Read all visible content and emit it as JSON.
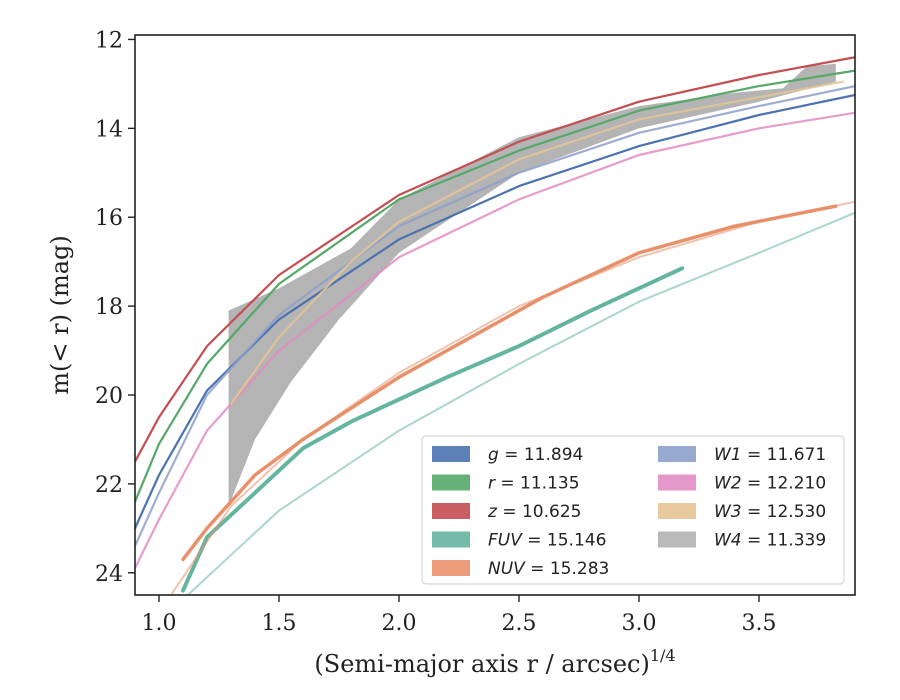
{
  "chart_data": {
    "type": "line",
    "xlabel": "(Semi-major axis r / arcsec)",
    "xlabel_exponent": "1/4",
    "ylabel": "m(< r) (mag)",
    "xlim": [
      0.9,
      3.9
    ],
    "ylim": [
      24.5,
      11.9
    ],
    "y_inverted": true,
    "x_ticks": [
      "1.0",
      "1.5",
      "2.0",
      "2.5",
      "3.0",
      "3.5"
    ],
    "y_ticks": [
      "12",
      "14",
      "16",
      "18",
      "20",
      "22",
      "24"
    ],
    "grid": false,
    "legend_position": "lower-right",
    "series": [
      {
        "name": "g",
        "value": "11.894",
        "color": "#4c72b0",
        "points": [
          [
            0.9,
            23.0
          ],
          [
            1.0,
            21.8
          ],
          [
            1.2,
            19.9
          ],
          [
            1.5,
            18.3
          ],
          [
            2.0,
            16.5
          ],
          [
            2.5,
            15.3
          ],
          [
            3.0,
            14.4
          ],
          [
            3.5,
            13.7
          ],
          [
            3.9,
            13.25
          ]
        ]
      },
      {
        "name": "r",
        "value": "11.135",
        "color": "#55a868",
        "points": [
          [
            0.9,
            22.4
          ],
          [
            1.0,
            21.1
          ],
          [
            1.2,
            19.3
          ],
          [
            1.5,
            17.5
          ],
          [
            2.0,
            15.6
          ],
          [
            2.5,
            14.5
          ],
          [
            3.0,
            13.6
          ],
          [
            3.5,
            13.05
          ],
          [
            3.9,
            12.7
          ]
        ]
      },
      {
        "name": "z",
        "value": "10.625",
        "color": "#c44e52",
        "points": [
          [
            0.9,
            21.5
          ],
          [
            1.0,
            20.5
          ],
          [
            1.2,
            18.9
          ],
          [
            1.5,
            17.3
          ],
          [
            2.0,
            15.5
          ],
          [
            2.5,
            14.3
          ],
          [
            3.0,
            13.4
          ],
          [
            3.5,
            12.8
          ],
          [
            3.9,
            12.4
          ]
        ]
      },
      {
        "name": "FUV",
        "value": "15.146",
        "color": "#64b5a0",
        "points": [
          [
            1.1,
            24.4
          ],
          [
            1.2,
            23.2
          ],
          [
            1.4,
            22.2
          ],
          [
            1.6,
            21.2
          ],
          [
            1.8,
            20.6
          ],
          [
            2.0,
            20.1
          ],
          [
            2.2,
            19.6
          ],
          [
            2.5,
            18.9
          ],
          [
            2.8,
            18.1
          ],
          [
            3.0,
            17.6
          ],
          [
            3.18,
            17.15
          ]
        ]
      },
      {
        "name": "NUV",
        "value": "15.283",
        "color": "#e8906a",
        "points": [
          [
            1.1,
            23.7
          ],
          [
            1.2,
            23.0
          ],
          [
            1.4,
            21.8
          ],
          [
            1.6,
            21.0
          ],
          [
            1.8,
            20.3
          ],
          [
            2.0,
            19.6
          ],
          [
            2.3,
            18.7
          ],
          [
            2.6,
            17.8
          ],
          [
            3.0,
            16.8
          ],
          [
            3.4,
            16.2
          ],
          [
            3.82,
            15.75
          ]
        ]
      },
      {
        "name": "W1",
        "value": "11.671",
        "color": "#8da0cb",
        "points": [
          [
            0.9,
            23.4
          ],
          [
            1.0,
            22.2
          ],
          [
            1.2,
            20.0
          ],
          [
            1.5,
            18.2
          ],
          [
            2.0,
            16.2
          ],
          [
            2.5,
            15.0
          ],
          [
            3.0,
            14.1
          ],
          [
            3.5,
            13.5
          ],
          [
            3.9,
            13.05
          ]
        ]
      },
      {
        "name": "W2",
        "value": "12.210",
        "color": "#e28cc3",
        "points": [
          [
            0.9,
            23.9
          ],
          [
            1.0,
            22.8
          ],
          [
            1.2,
            20.8
          ],
          [
            1.5,
            19.0
          ],
          [
            2.0,
            16.9
          ],
          [
            2.5,
            15.6
          ],
          [
            3.0,
            14.6
          ],
          [
            3.5,
            14.0
          ],
          [
            3.9,
            13.65
          ]
        ]
      },
      {
        "name": "W3",
        "value": "12.530",
        "color": "#e5c494",
        "points": [
          [
            1.3,
            20.2
          ],
          [
            1.5,
            18.7
          ],
          [
            1.8,
            17.0
          ],
          [
            2.0,
            16.1
          ],
          [
            2.5,
            14.7
          ],
          [
            3.0,
            13.8
          ],
          [
            3.5,
            13.3
          ],
          [
            3.85,
            12.95
          ]
        ]
      },
      {
        "name": "W4",
        "value": "11.339",
        "color": "#b3b3b3",
        "points": [
          [
            1.29,
            18.1
          ],
          [
            1.5,
            17.6
          ],
          [
            1.8,
            16.7
          ],
          [
            2.0,
            15.9
          ],
          [
            2.5,
            14.6
          ],
          [
            3.0,
            13.8
          ],
          [
            3.5,
            13.2
          ],
          [
            3.82,
            12.8
          ]
        ]
      }
    ],
    "w4_band_lower": [
      [
        1.29,
        22.5
      ],
      [
        1.4,
        21.0
      ],
      [
        1.55,
        19.7
      ],
      [
        1.75,
        18.3
      ],
      [
        2.0,
        16.8
      ],
      [
        2.5,
        15.0
      ],
      [
        3.0,
        14.0
      ],
      [
        3.5,
        13.4
      ],
      [
        3.82,
        12.95
      ]
    ],
    "w4_band_upper": [
      [
        1.29,
        18.1
      ],
      [
        1.5,
        17.6
      ],
      [
        1.8,
        16.7
      ],
      [
        2.0,
        15.6
      ],
      [
        2.5,
        14.2
      ],
      [
        3.0,
        13.5
      ],
      [
        3.4,
        13.2
      ],
      [
        3.6,
        13.1
      ],
      [
        3.7,
        12.6
      ],
      [
        3.82,
        12.55
      ]
    ]
  }
}
